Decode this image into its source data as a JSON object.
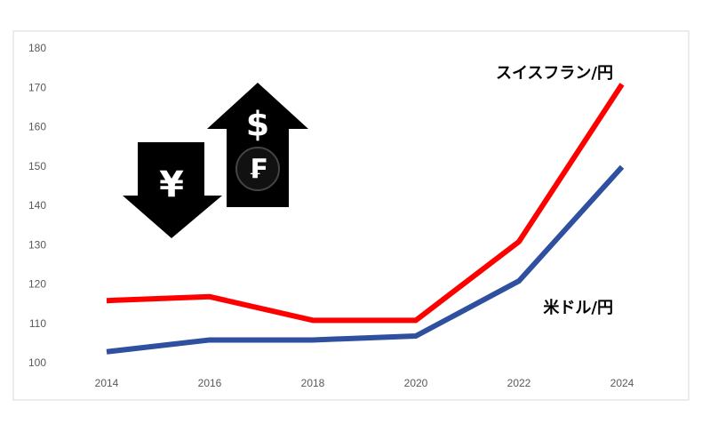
{
  "chart_data": {
    "type": "line",
    "categories": [
      "2014",
      "2016",
      "2018",
      "2020",
      "2022",
      "2024"
    ],
    "series": [
      {
        "name": "スイスフラン/円",
        "color": "#ff0000",
        "values": [
          116,
          117,
          111,
          111,
          131,
          171
        ]
      },
      {
        "name": "米ドル/円",
        "color": "#2f4f9f",
        "values": [
          103,
          106,
          106,
          107,
          121,
          150
        ]
      }
    ],
    "ylim": [
      100,
      180
    ],
    "yticks": [
      100,
      110,
      120,
      130,
      140,
      150,
      160,
      170,
      180
    ],
    "grid": false,
    "symbols": [
      "¥",
      "$",
      "₣"
    ]
  }
}
